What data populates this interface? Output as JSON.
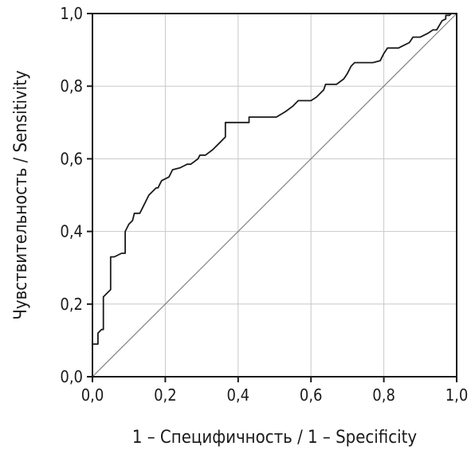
{
  "chart_data": {
    "type": "line",
    "title": "",
    "xlabel": "1 – Специфичность / 1 – Specificity",
    "ylabel": "Чувствительность / Sensitivity",
    "xlim": [
      0,
      1
    ],
    "ylim": [
      0,
      1
    ],
    "x_ticks": [
      "0,0",
      "0,2",
      "0,4",
      "0,6",
      "0,8",
      "1,0"
    ],
    "y_ticks": [
      "0,0",
      "0,2",
      "0,4",
      "0,6",
      "0,8",
      "1,0"
    ],
    "grid": true,
    "legend": "none",
    "series": [
      {
        "role": "roc-curve",
        "color": "#1a1a1a",
        "points": [
          [
            0.0,
            0.0
          ],
          [
            0.0,
            0.09
          ],
          [
            0.015,
            0.09
          ],
          [
            0.015,
            0.12
          ],
          [
            0.025,
            0.13
          ],
          [
            0.03,
            0.13
          ],
          [
            0.03,
            0.22
          ],
          [
            0.04,
            0.23
          ],
          [
            0.05,
            0.24
          ],
          [
            0.05,
            0.33
          ],
          [
            0.06,
            0.33
          ],
          [
            0.08,
            0.34
          ],
          [
            0.09,
            0.34
          ],
          [
            0.09,
            0.4
          ],
          [
            0.1,
            0.42
          ],
          [
            0.11,
            0.43
          ],
          [
            0.115,
            0.45
          ],
          [
            0.13,
            0.45
          ],
          [
            0.14,
            0.47
          ],
          [
            0.155,
            0.5
          ],
          [
            0.165,
            0.51
          ],
          [
            0.175,
            0.52
          ],
          [
            0.18,
            0.52
          ],
          [
            0.185,
            0.53
          ],
          [
            0.19,
            0.54
          ],
          [
            0.21,
            0.55
          ],
          [
            0.215,
            0.56
          ],
          [
            0.22,
            0.57
          ],
          [
            0.24,
            0.575
          ],
          [
            0.25,
            0.58
          ],
          [
            0.26,
            0.585
          ],
          [
            0.27,
            0.585
          ],
          [
            0.29,
            0.6
          ],
          [
            0.295,
            0.61
          ],
          [
            0.31,
            0.61
          ],
          [
            0.33,
            0.625
          ],
          [
            0.345,
            0.64
          ],
          [
            0.365,
            0.66
          ],
          [
            0.365,
            0.7
          ],
          [
            0.4,
            0.7
          ],
          [
            0.43,
            0.7
          ],
          [
            0.43,
            0.715
          ],
          [
            0.48,
            0.715
          ],
          [
            0.505,
            0.715
          ],
          [
            0.53,
            0.73
          ],
          [
            0.55,
            0.745
          ],
          [
            0.565,
            0.76
          ],
          [
            0.6,
            0.76
          ],
          [
            0.615,
            0.77
          ],
          [
            0.635,
            0.79
          ],
          [
            0.64,
            0.805
          ],
          [
            0.67,
            0.805
          ],
          [
            0.69,
            0.82
          ],
          [
            0.7,
            0.835
          ],
          [
            0.71,
            0.855
          ],
          [
            0.72,
            0.865
          ],
          [
            0.77,
            0.865
          ],
          [
            0.79,
            0.87
          ],
          [
            0.8,
            0.89
          ],
          [
            0.81,
            0.905
          ],
          [
            0.84,
            0.905
          ],
          [
            0.87,
            0.92
          ],
          [
            0.88,
            0.935
          ],
          [
            0.9,
            0.935
          ],
          [
            0.92,
            0.945
          ],
          [
            0.935,
            0.955
          ],
          [
            0.945,
            0.955
          ],
          [
            0.96,
            0.98
          ],
          [
            0.97,
            0.985
          ],
          [
            0.97,
            0.995
          ],
          [
            0.98,
            0.995
          ],
          [
            0.985,
            1.0
          ],
          [
            1.0,
            1.0
          ]
        ]
      },
      {
        "role": "reference-diagonal",
        "color": "#808080",
        "points": [
          [
            0,
            0
          ],
          [
            1,
            1
          ]
        ]
      }
    ]
  }
}
